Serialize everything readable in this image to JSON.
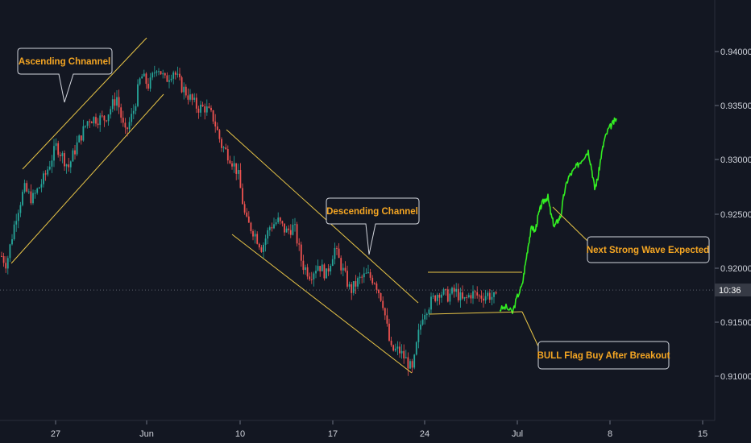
{
  "chart_data": {
    "type": "candlestick",
    "x_axis": {
      "tick_labels": [
        "27",
        "Jun",
        "10",
        "17",
        "24",
        "Jul",
        "8",
        "15"
      ]
    },
    "y_axis": {
      "tick_labels": [
        "0.94000",
        "0.93500",
        "0.93000",
        "0.92500",
        "0.92000",
        "0.91500",
        "0.91000"
      ],
      "range": [
        0.9065,
        0.9455
      ]
    },
    "current_price_tag": "10:36",
    "current_price": 0.9186,
    "colors": {
      "up": "#26a69a",
      "down": "#ef5350",
      "projection": "#33ee22",
      "annotation": "#e8c547",
      "callout_text": "#f5a623",
      "background": "#131722"
    },
    "annotations": [
      {
        "label": "Ascending Chnannel"
      },
      {
        "label": "Descending Channel"
      },
      {
        "label": "Next Strong Wave Expected"
      },
      {
        "label": "BULL Flag Buy After Breakout"
      }
    ],
    "price_path_points": [
      [
        0,
        0.922
      ],
      [
        8,
        0.921
      ],
      [
        20,
        0.9255
      ],
      [
        30,
        0.928
      ],
      [
        40,
        0.927
      ],
      [
        55,
        0.929
      ],
      [
        70,
        0.932
      ],
      [
        85,
        0.93
      ],
      [
        95,
        0.932
      ],
      [
        110,
        0.9345
      ],
      [
        130,
        0.9345
      ],
      [
        145,
        0.9365
      ],
      [
        155,
        0.933
      ],
      [
        165,
        0.935
      ],
      [
        175,
        0.9385
      ],
      [
        185,
        0.9375
      ],
      [
        195,
        0.9395
      ],
      [
        205,
        0.938
      ],
      [
        215,
        0.939
      ],
      [
        225,
        0.9375
      ],
      [
        235,
        0.9365
      ],
      [
        245,
        0.9355
      ],
      [
        255,
        0.9355
      ],
      [
        265,
        0.9345
      ],
      [
        275,
        0.932
      ],
      [
        285,
        0.931
      ],
      [
        295,
        0.9295
      ],
      [
        305,
        0.925
      ],
      [
        315,
        0.924
      ],
      [
        325,
        0.9225
      ],
      [
        335,
        0.9245
      ],
      [
        345,
        0.925
      ],
      [
        355,
        0.924
      ],
      [
        365,
        0.9245
      ],
      [
        375,
        0.921
      ],
      [
        385,
        0.92
      ],
      [
        395,
        0.921
      ],
      [
        405,
        0.92
      ],
      [
        415,
        0.9225
      ],
      [
        425,
        0.9205
      ],
      [
        435,
        0.9185
      ],
      [
        445,
        0.9195
      ],
      [
        455,
        0.92
      ],
      [
        465,
        0.9195
      ],
      [
        475,
        0.9175
      ],
      [
        485,
        0.913
      ],
      [
        495,
        0.913
      ],
      [
        505,
        0.912
      ],
      [
        512,
        0.911
      ],
      [
        518,
        0.914
      ],
      [
        525,
        0.9165
      ],
      [
        535,
        0.9175
      ],
      [
        545,
        0.9185
      ],
      [
        555,
        0.918
      ],
      [
        565,
        0.9185
      ],
      [
        575,
        0.9175
      ],
      [
        585,
        0.9183
      ],
      [
        595,
        0.918
      ],
      [
        605,
        0.9182
      ],
      [
        615,
        0.9178
      ],
      [
        620,
        0.917
      ]
    ],
    "projection_points": [
      [
        620,
        0.9168
      ],
      [
        628,
        0.917
      ],
      [
        636,
        0.9165
      ],
      [
        642,
        0.918
      ],
      [
        648,
        0.919
      ],
      [
        652,
        0.921
      ],
      [
        656,
        0.923
      ],
      [
        660,
        0.9245
      ],
      [
        664,
        0.924
      ],
      [
        668,
        0.9255
      ],
      [
        672,
        0.9265
      ],
      [
        676,
        0.927
      ],
      [
        680,
        0.9272
      ],
      [
        684,
        0.9255
      ],
      [
        688,
        0.9245
      ],
      [
        692,
        0.925
      ],
      [
        696,
        0.9255
      ],
      [
        700,
        0.9275
      ],
      [
        705,
        0.929
      ],
      [
        710,
        0.9295
      ],
      [
        715,
        0.93
      ],
      [
        720,
        0.9305
      ],
      [
        725,
        0.931
      ],
      [
        730,
        0.9315
      ],
      [
        734,
        0.93
      ],
      [
        738,
        0.928
      ],
      [
        742,
        0.929
      ],
      [
        746,
        0.931
      ],
      [
        750,
        0.9325
      ],
      [
        755,
        0.9335
      ],
      [
        760,
        0.934
      ],
      [
        765,
        0.9345
      ]
    ]
  }
}
